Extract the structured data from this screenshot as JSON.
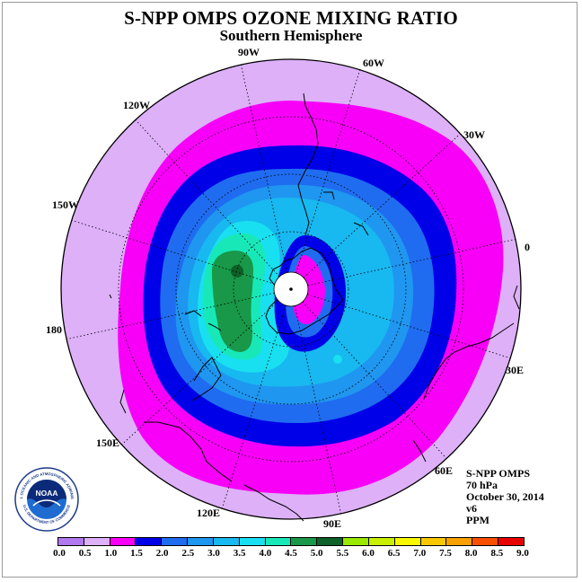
{
  "header": {
    "title": "S-NPP OMPS OZONE MIXING RATIO",
    "subtitle": "Southern Hemisphere"
  },
  "map": {
    "projection": "south-polar-stereographic",
    "longitude_labels": [
      "90W",
      "60W",
      "30W",
      "0",
      "30E",
      "60E",
      "90E",
      "120E",
      "150E",
      "180",
      "150W",
      "120W"
    ],
    "colors": {
      "land_outline": "#000000",
      "graticule": "#000000",
      "polar_cap": "#ffffff"
    }
  },
  "info": {
    "instrument": "S-NPP OMPS",
    "level": "70 hPa",
    "date": "October 30, 2014",
    "version": "v6",
    "units": "PPM"
  },
  "logo": {
    "text": "NOAA",
    "ring_text": "NATIONAL OCEANIC AND ATMOSPHERIC ADMINISTRATION",
    "ring_text_bottom": "U.S. DEPARTMENT OF COMMERCE"
  },
  "colorbar": {
    "labels": [
      "0.0",
      "0.5",
      "1.0",
      "1.5",
      "2.0",
      "2.5",
      "3.0",
      "3.5",
      "4.0",
      "4.5",
      "5.0",
      "5.5",
      "6.0",
      "6.5",
      "7.0",
      "7.5",
      "8.0",
      "8.5",
      "9.0"
    ],
    "colors": [
      "#b178f0",
      "#ddb0f8",
      "#f800f8",
      "#0000e8",
      "#1f6cf0",
      "#1f96f0",
      "#18b8f0",
      "#18e0f0",
      "#18e8b8",
      "#189848",
      "#0c6028",
      "#98e800",
      "#c8f000",
      "#f8f800",
      "#f8c800",
      "#f8a000",
      "#f85000",
      "#e80000",
      "#986040"
    ]
  }
}
